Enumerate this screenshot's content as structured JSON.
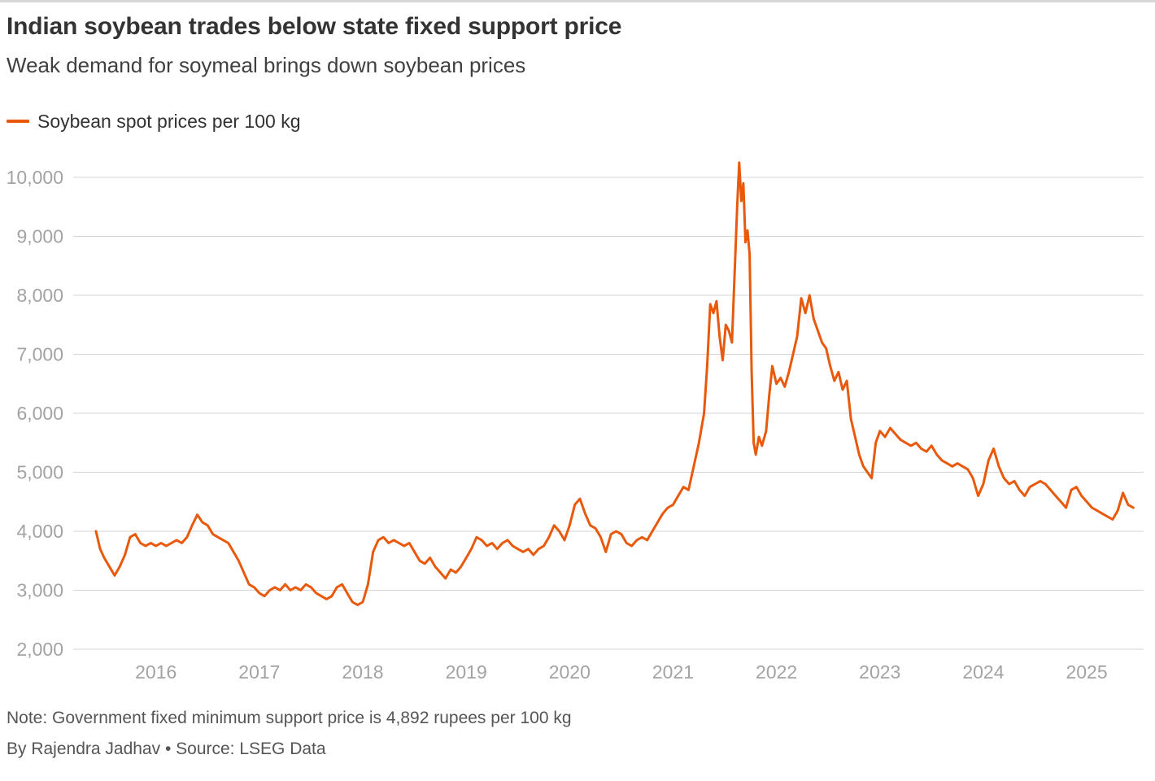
{
  "header": {
    "title": "Indian soybean trades below state fixed support price",
    "subtitle": "Weak demand for soymeal brings down soybean prices"
  },
  "legend": {
    "label": "Soybean spot prices per 100 kg"
  },
  "footer": {
    "note": "Note: Government fixed minimum support price is 4,892 rupees per 100 kg",
    "byline": "By Rajendra Jadhav • Source: LSEG Data"
  },
  "colors": {
    "line": "#e8590c",
    "grid": "#d4d4d4",
    "axis_label": "#a3a3a3"
  },
  "chart_data": {
    "type": "line",
    "title": "Indian soybean trades below state fixed support price",
    "subtitle": "Weak demand for soymeal brings down soybean prices",
    "xlabel": "",
    "ylabel": "Soybean spot prices per 100 kg (rupees)",
    "x_domain": [
      2015.2,
      2025.55
    ],
    "y_domain": [
      2000,
      10000
    ],
    "grid": true,
    "legend_position": "top-left",
    "y_ticks": [
      {
        "value": 10000,
        "label": "10,000"
      },
      {
        "value": 9000,
        "label": "9,000"
      },
      {
        "value": 8000,
        "label": "8,000"
      },
      {
        "value": 7000,
        "label": "7,000"
      },
      {
        "value": 6000,
        "label": "6,000"
      },
      {
        "value": 5000,
        "label": "5,000"
      },
      {
        "value": 4000,
        "label": "4,000"
      },
      {
        "value": 3000,
        "label": "3,000"
      },
      {
        "value": 2000,
        "label": "2,000"
      }
    ],
    "x_ticks": [
      {
        "value": 2016,
        "label": "2016"
      },
      {
        "value": 2017,
        "label": "2017"
      },
      {
        "value": 2018,
        "label": "2018"
      },
      {
        "value": 2019,
        "label": "2019"
      },
      {
        "value": 2020,
        "label": "2020"
      },
      {
        "value": 2021,
        "label": "2021"
      },
      {
        "value": 2022,
        "label": "2022"
      },
      {
        "value": 2023,
        "label": "2023"
      },
      {
        "value": 2024,
        "label": "2024"
      },
      {
        "value": 2025,
        "label": "2025"
      }
    ],
    "series": [
      {
        "name": "Soybean spot prices per 100 kg",
        "x": [
          2015.42,
          2015.46,
          2015.5,
          2015.55,
          2015.6,
          2015.65,
          2015.7,
          2015.75,
          2015.8,
          2015.85,
          2015.9,
          2015.95,
          2016.0,
          2016.05,
          2016.1,
          2016.15,
          2016.2,
          2016.25,
          2016.3,
          2016.35,
          2016.4,
          2016.45,
          2016.5,
          2016.55,
          2016.6,
          2016.65,
          2016.7,
          2016.75,
          2016.8,
          2016.85,
          2016.9,
          2016.95,
          2017.0,
          2017.05,
          2017.1,
          2017.15,
          2017.2,
          2017.25,
          2017.3,
          2017.35,
          2017.4,
          2017.45,
          2017.5,
          2017.55,
          2017.6,
          2017.65,
          2017.7,
          2017.75,
          2017.8,
          2017.85,
          2017.9,
          2017.95,
          2018.0,
          2018.05,
          2018.1,
          2018.15,
          2018.2,
          2018.25,
          2018.3,
          2018.35,
          2018.4,
          2018.45,
          2018.5,
          2018.55,
          2018.6,
          2018.65,
          2018.7,
          2018.75,
          2018.8,
          2018.85,
          2018.9,
          2018.95,
          2019.0,
          2019.05,
          2019.1,
          2019.15,
          2019.2,
          2019.25,
          2019.3,
          2019.35,
          2019.4,
          2019.45,
          2019.5,
          2019.55,
          2019.6,
          2019.65,
          2019.7,
          2019.75,
          2019.8,
          2019.85,
          2019.9,
          2019.95,
          2020.0,
          2020.05,
          2020.1,
          2020.15,
          2020.2,
          2020.25,
          2020.3,
          2020.35,
          2020.4,
          2020.45,
          2020.5,
          2020.55,
          2020.6,
          2020.65,
          2020.7,
          2020.75,
          2020.8,
          2020.85,
          2020.9,
          2020.95,
          2021.0,
          2021.05,
          2021.1,
          2021.15,
          2021.2,
          2021.25,
          2021.3,
          2021.33,
          2021.36,
          2021.39,
          2021.42,
          2021.45,
          2021.48,
          2021.51,
          2021.54,
          2021.57,
          2021.6,
          2021.62,
          2021.64,
          2021.66,
          2021.68,
          2021.7,
          2021.72,
          2021.74,
          2021.76,
          2021.78,
          2021.8,
          2021.83,
          2021.86,
          2021.9,
          2021.93,
          2021.96,
          2022.0,
          2022.04,
          2022.08,
          2022.12,
          2022.16,
          2022.2,
          2022.24,
          2022.28,
          2022.32,
          2022.36,
          2022.4,
          2022.44,
          2022.48,
          2022.52,
          2022.56,
          2022.6,
          2022.64,
          2022.68,
          2022.72,
          2022.76,
          2022.8,
          2022.84,
          2022.88,
          2022.92,
          2022.96,
          2023.0,
          2023.05,
          2023.1,
          2023.15,
          2023.2,
          2023.25,
          2023.3,
          2023.35,
          2023.4,
          2023.45,
          2023.5,
          2023.55,
          2023.6,
          2023.65,
          2023.7,
          2023.75,
          2023.8,
          2023.85,
          2023.9,
          2023.95,
          2024.0,
          2024.05,
          2024.1,
          2024.15,
          2024.2,
          2024.25,
          2024.3,
          2024.35,
          2024.4,
          2024.45,
          2024.5,
          2024.55,
          2024.6,
          2024.65,
          2024.7,
          2024.75,
          2024.8,
          2024.85,
          2024.9,
          2024.95,
          2025.0,
          2025.05,
          2025.1,
          2025.15,
          2025.2,
          2025.25,
          2025.3,
          2025.35,
          2025.4,
          2025.45
        ],
        "y": [
          4000,
          3700,
          3550,
          3400,
          3250,
          3400,
          3600,
          3900,
          3950,
          3800,
          3750,
          3800,
          3750,
          3800,
          3750,
          3800,
          3850,
          3800,
          3900,
          4100,
          4280,
          4150,
          4100,
          3950,
          3900,
          3850,
          3800,
          3650,
          3500,
          3300,
          3100,
          3050,
          2950,
          2900,
          3000,
          3050,
          3000,
          3100,
          3000,
          3050,
          3000,
          3100,
          3050,
          2950,
          2900,
          2850,
          2900,
          3050,
          3100,
          2950,
          2800,
          2750,
          2800,
          3100,
          3650,
          3850,
          3900,
          3800,
          3850,
          3800,
          3750,
          3800,
          3650,
          3500,
          3450,
          3550,
          3400,
          3300,
          3200,
          3350,
          3300,
          3400,
          3550,
          3700,
          3900,
          3850,
          3750,
          3800,
          3700,
          3800,
          3850,
          3750,
          3700,
          3650,
          3700,
          3600,
          3700,
          3750,
          3900,
          4100,
          4000,
          3850,
          4100,
          4450,
          4550,
          4300,
          4100,
          4050,
          3900,
          3650,
          3950,
          4000,
          3950,
          3800,
          3750,
          3850,
          3900,
          3850,
          4000,
          4150,
          4300,
          4400,
          4450,
          4600,
          4750,
          4700,
          5100,
          5500,
          6000,
          6800,
          7850,
          7700,
          7900,
          7300,
          6900,
          7500,
          7400,
          7200,
          8600,
          9500,
          10250,
          9600,
          9900,
          8900,
          9100,
          8700,
          6700,
          5500,
          5300,
          5600,
          5450,
          5700,
          6300,
          6800,
          6500,
          6600,
          6450,
          6700,
          7000,
          7300,
          7950,
          7700,
          8000,
          7600,
          7400,
          7200,
          7100,
          6800,
          6550,
          6700,
          6400,
          6550,
          5900,
          5600,
          5300,
          5100,
          5000,
          4900,
          5500,
          5700,
          5600,
          5750,
          5650,
          5550,
          5500,
          5450,
          5500,
          5400,
          5350,
          5450,
          5300,
          5200,
          5150,
          5100,
          5150,
          5100,
          5050,
          4900,
          4600,
          4800,
          5200,
          5400,
          5100,
          4900,
          4800,
          4850,
          4700,
          4600,
          4750,
          4800,
          4850,
          4800,
          4700,
          4600,
          4500,
          4400,
          4700,
          4750,
          4600,
          4500,
          4400,
          4350,
          4300,
          4250,
          4200,
          4350,
          4650,
          4450,
          4400
        ]
      }
    ]
  }
}
